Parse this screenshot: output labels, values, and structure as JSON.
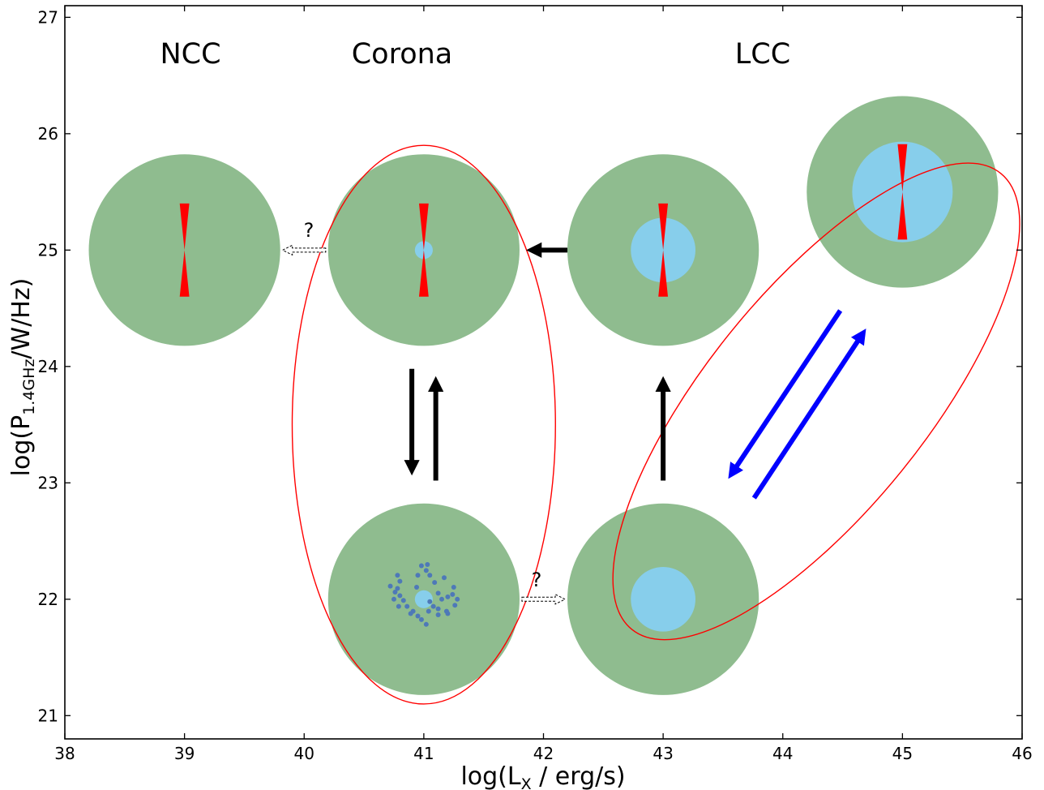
{
  "diagram": {
    "region_labels": [
      {
        "id": "ncc",
        "text": "NCC",
        "x": 39.05,
        "y": 26.65
      },
      {
        "id": "corona",
        "text": "Corona",
        "x": 40.82,
        "y": 26.65
      },
      {
        "id": "lcc",
        "text": "LCC",
        "x": 43.83,
        "y": 26.65
      }
    ],
    "x_axis": {
      "label_main": "log(L",
      "label_sub": "X",
      "label_rest": " / erg/s)",
      "range": [
        38,
        46
      ],
      "ticks": [
        "38",
        "39",
        "40",
        "41",
        "42",
        "43",
        "44",
        "45",
        "46"
      ]
    },
    "y_axis": {
      "label_main": "log(P",
      "label_sub": "1.4GHz",
      "label_rest": "/W/Hz)",
      "range": [
        20.8,
        27.1
      ],
      "ticks": [
        "21",
        "22",
        "23",
        "24",
        "25",
        "26",
        "27"
      ]
    },
    "question_marks": [
      {
        "text": "?",
        "x": 40.05,
        "y": 25.17
      },
      {
        "text": "?",
        "x": 41.95,
        "y": 22.16
      }
    ],
    "clusters": [
      {
        "id": "ncc-cluster",
        "x": 39,
        "y": 25,
        "core": 0,
        "jets": true
      },
      {
        "id": "corona-cluster",
        "x": 41,
        "y": 25,
        "core": 0.075,
        "jets": true
      },
      {
        "id": "lcc-cluster-radio",
        "x": 43,
        "y": 25,
        "core": 0.27,
        "jets": true
      },
      {
        "id": "lcc-cluster-strong",
        "x": 45,
        "y": 25.5,
        "core": 0.42,
        "jets": true
      },
      {
        "id": "corona-cluster-cooling",
        "x": 41,
        "y": 22,
        "core": 0.075,
        "jets": false,
        "cooling_flow": true
      },
      {
        "id": "lcc-cluster-quiet",
        "x": 43,
        "y": 22,
        "core": 0.27,
        "jets": false
      }
    ],
    "colors": {
      "cluster": "#8fbc8f",
      "core": "#87ceeb",
      "jet": "#ff0000",
      "blob": "#4e79b8",
      "ellipse": "#ff0000",
      "black_arrow": "#000000",
      "blue_arrow": "#0000ff"
    }
  }
}
